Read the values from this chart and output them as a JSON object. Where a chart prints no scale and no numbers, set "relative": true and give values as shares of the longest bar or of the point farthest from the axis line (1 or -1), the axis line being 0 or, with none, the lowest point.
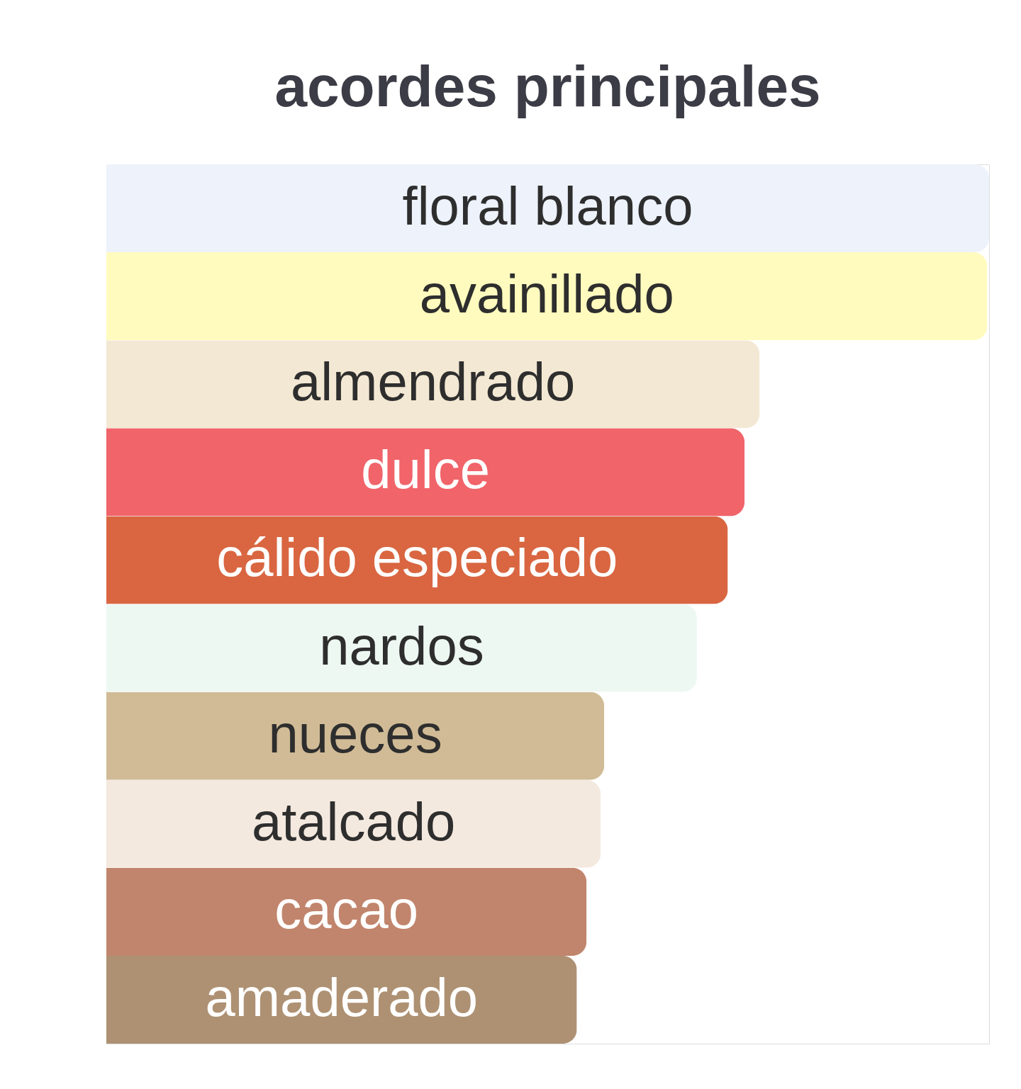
{
  "chart_data": {
    "type": "bar",
    "orientation": "horizontal",
    "relative": true,
    "title": "acordes principales",
    "tick_labels": "y",
    "categories": [
      "floral blanco",
      "avainillado",
      "almendrado",
      "dulce",
      "cálido especiado",
      "nardos",
      "nueces",
      "atalcado",
      "cacao",
      "amaderado"
    ],
    "values": [
      1,
      0.998,
      0.74,
      0.723,
      0.704,
      0.669,
      0.564,
      0.56,
      0.544,
      0.533
    ],
    "colors": [
      "#edf2fb",
      "#fffbbe",
      "#f3e8d3",
      "#f0646a",
      "#d96641",
      "#eef8f3",
      "#d0bb96",
      "#f4e9df",
      "#c1856d",
      "#ae9173"
    ]
  }
}
